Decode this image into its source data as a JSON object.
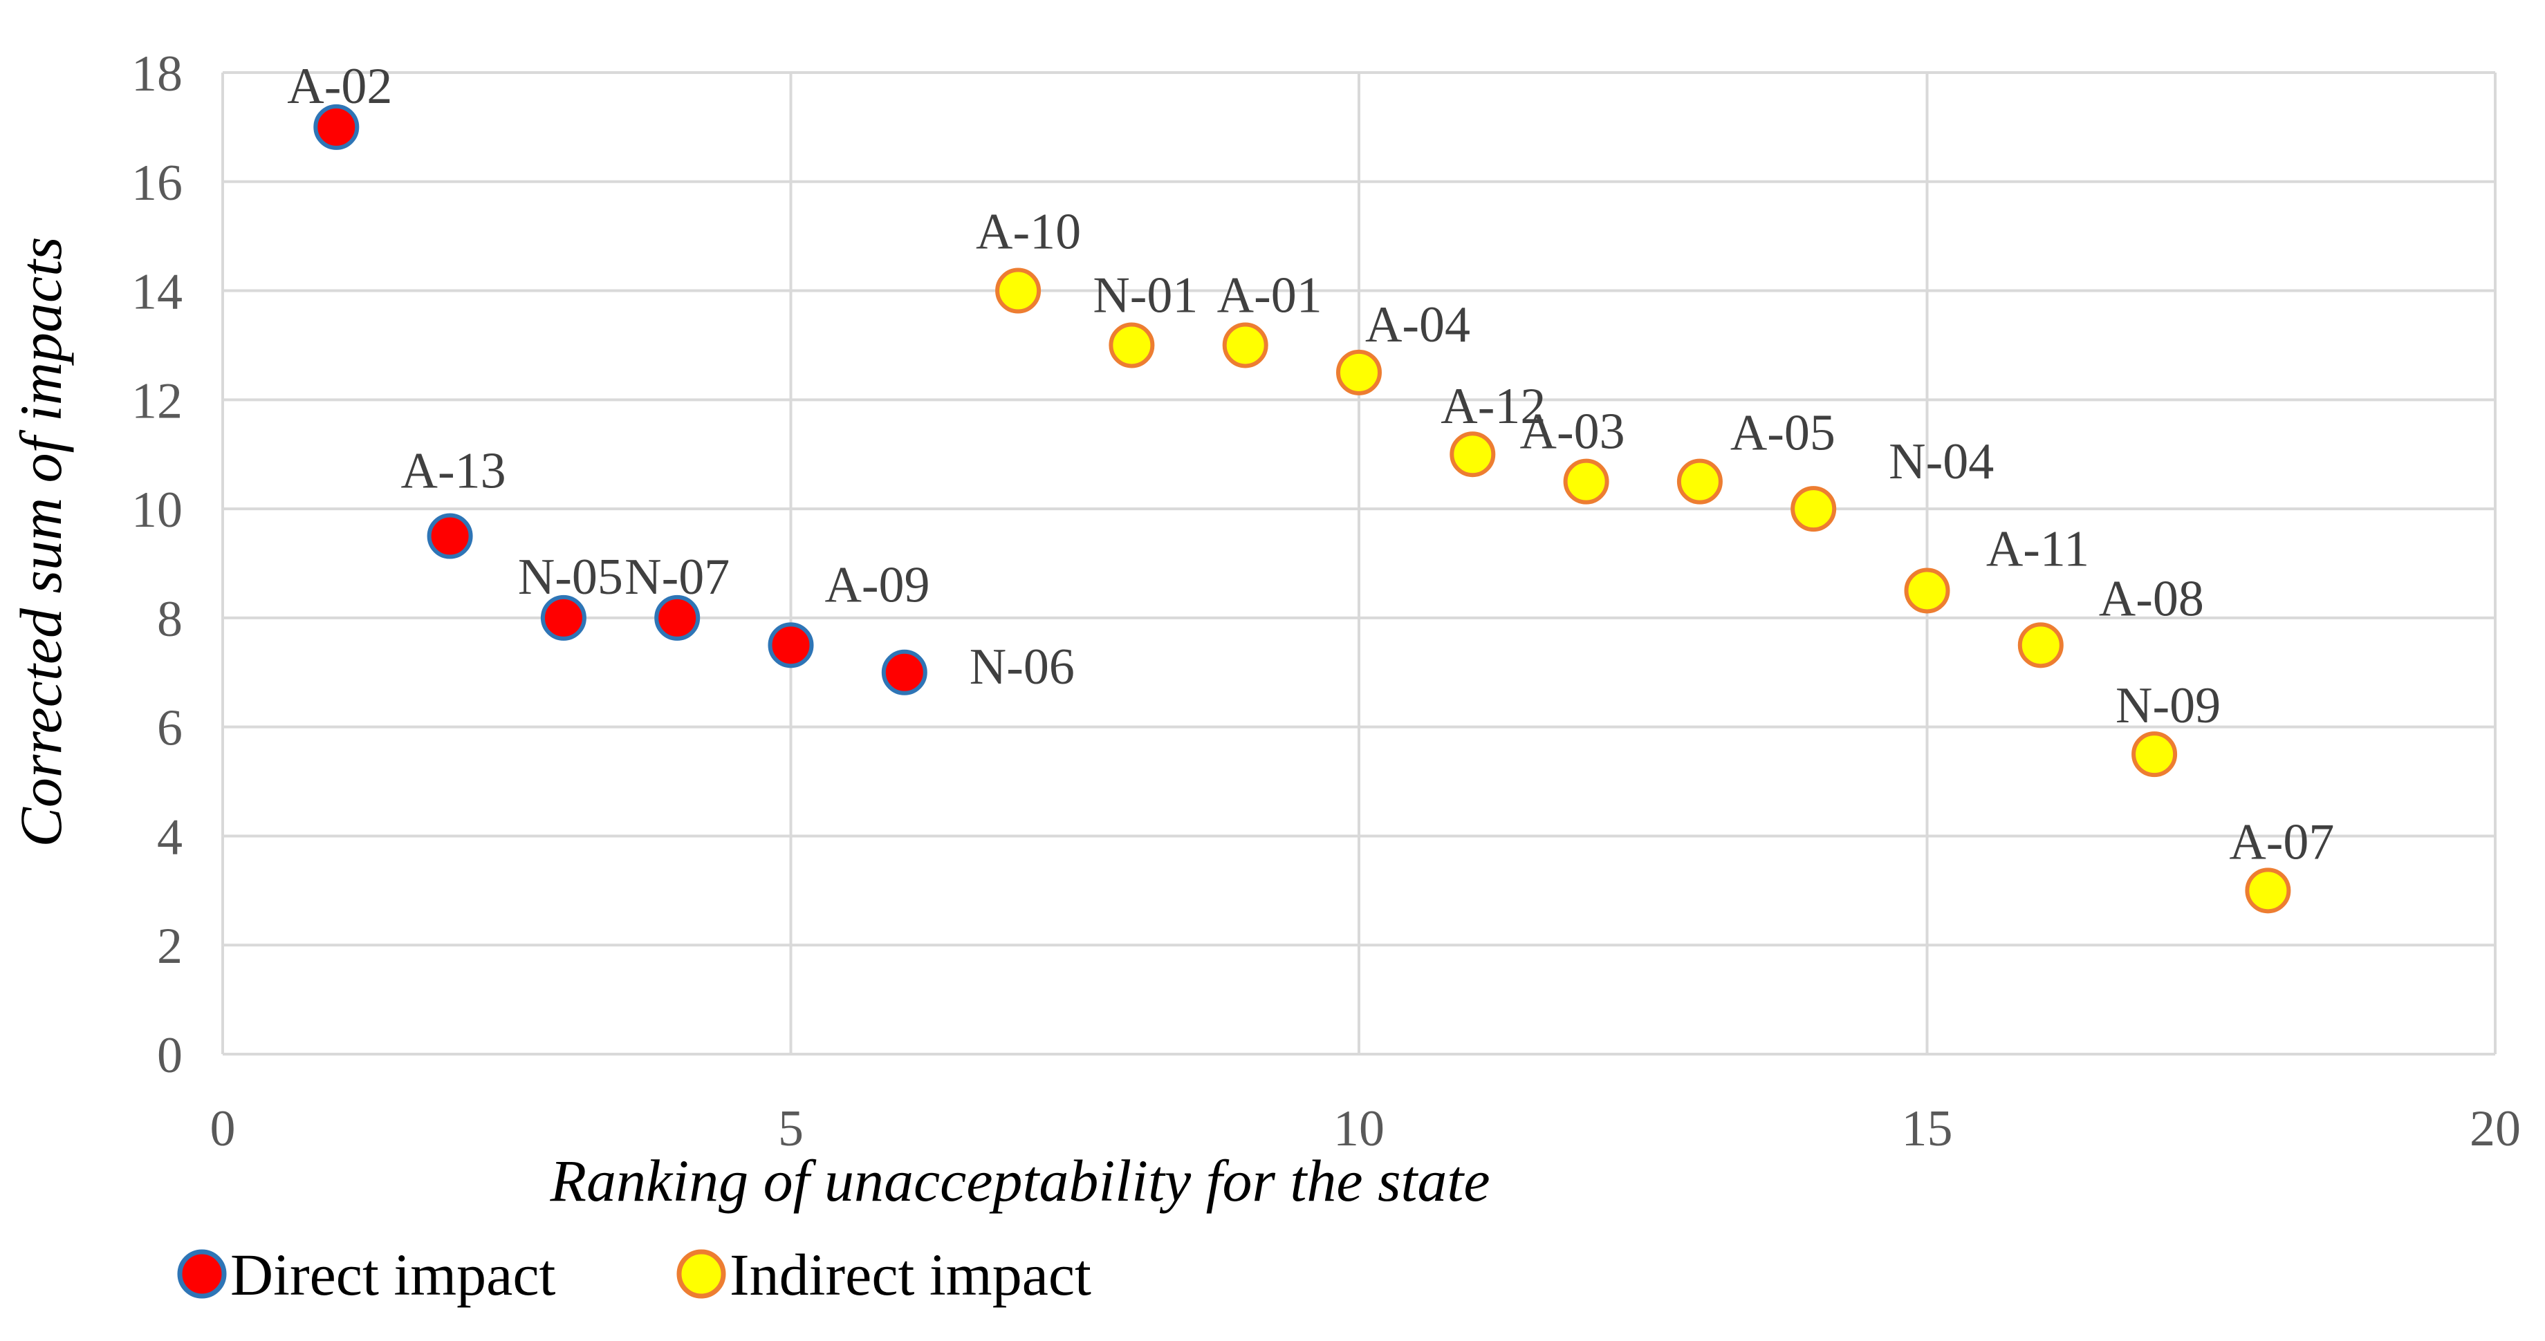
{
  "chart_data": {
    "type": "scatter",
    "title": "",
    "xlabel": "Ranking of unacceptability for the state",
    "ylabel": "Corrected sum of impacts",
    "xlim": [
      0,
      20
    ],
    "ylim": [
      0,
      18
    ],
    "xticks": [
      0,
      5,
      10,
      15,
      20
    ],
    "yticks": [
      0,
      2,
      4,
      6,
      8,
      10,
      12,
      14,
      16,
      18
    ],
    "grid": true,
    "legend_position": "bottom-left",
    "series": [
      {
        "name": "Direct impact",
        "fill": "#ff0000",
        "stroke": "#2e75b6",
        "points": [
          {
            "x": 1,
            "y": 17,
            "label": "A-02"
          },
          {
            "x": 2,
            "y": 9.5,
            "label": "A-13"
          },
          {
            "x": 3,
            "y": 8,
            "label": "N-05"
          },
          {
            "x": 4,
            "y": 8,
            "label": "N-07"
          },
          {
            "x": 5,
            "y": 7.5,
            "label": "A-09"
          },
          {
            "x": 6,
            "y": 7,
            "label": "N-06"
          }
        ]
      },
      {
        "name": "Indirect impact",
        "fill": "#ffff00",
        "stroke": "#ed7d31",
        "points": [
          {
            "x": 7,
            "y": 14,
            "label": "A-10"
          },
          {
            "x": 8,
            "y": 13,
            "label": "N-01"
          },
          {
            "x": 9,
            "y": 13,
            "label": "A-01"
          },
          {
            "x": 10,
            "y": 12.5,
            "label": "A-04"
          },
          {
            "x": 11,
            "y": 11,
            "label": "A-12"
          },
          {
            "x": 12,
            "y": 10.5,
            "label": "A-03"
          },
          {
            "x": 13,
            "y": 10.5,
            "label": "A-05"
          },
          {
            "x": 14,
            "y": 10,
            "label": "N-04"
          },
          {
            "x": 15,
            "y": 8.5,
            "label": "A-11"
          },
          {
            "x": 16,
            "y": 7.5,
            "label": "A-08"
          },
          {
            "x": 17,
            "y": 5.5,
            "label": "N-09"
          },
          {
            "x": 18,
            "y": 3,
            "label": "A-07"
          }
        ]
      }
    ]
  }
}
